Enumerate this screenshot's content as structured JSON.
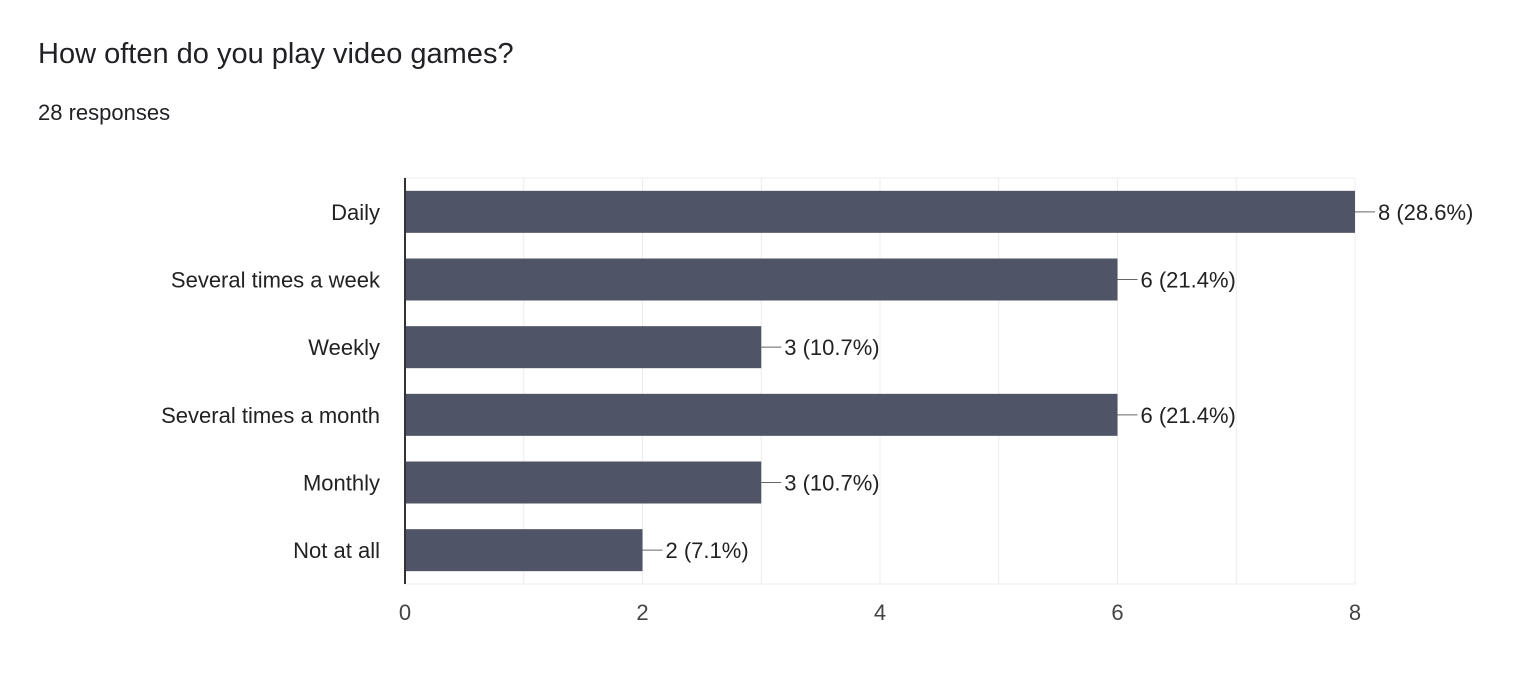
{
  "question": {
    "title": "How often do you play video games?",
    "responses_label": "28 responses"
  },
  "colors": {
    "bar": "#4f5466",
    "grid": "#ececec",
    "axis": "#333333",
    "label": "#222222",
    "tick": "#444444",
    "leader": "#666666"
  },
  "chart_data": {
    "type": "bar",
    "orientation": "horizontal",
    "categories": [
      "Daily",
      "Several times a week",
      "Weekly",
      "Several times a month",
      "Monthly",
      "Not at all"
    ],
    "values": [
      8,
      6,
      3,
      6,
      3,
      2
    ],
    "data_labels": [
      "8 (28.6%)",
      "6 (21.4%)",
      "3 (10.7%)",
      "6 (21.4%)",
      "3 (10.7%)",
      "2 (7.1%)"
    ],
    "title": "",
    "xlabel": "",
    "ylabel": "",
    "xlim": [
      0,
      8
    ],
    "x_ticks": [
      0,
      2,
      4,
      6,
      8
    ],
    "x_tick_labels": [
      "0",
      "2",
      "4",
      "6",
      "8"
    ],
    "grid": true,
    "legend": "none"
  }
}
